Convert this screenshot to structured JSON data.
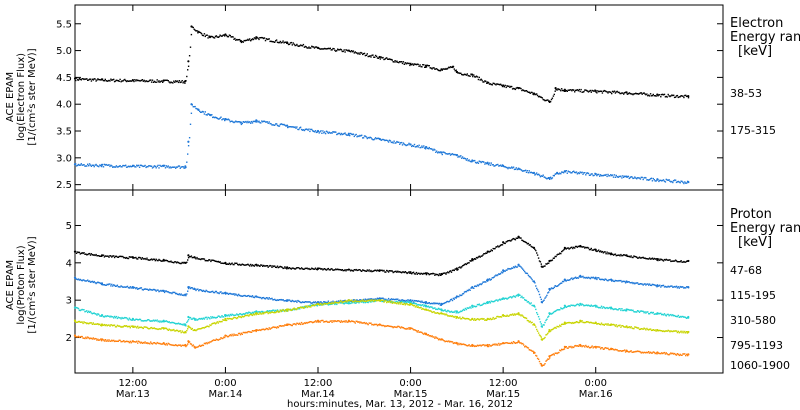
{
  "xaxis": {
    "title": "hours:minutes, Mar. 13, 2012 - Mar. 16, 2012",
    "range_hours": [
      4.5,
      88.5
    ],
    "ticks": [
      {
        "t": 12,
        "time": "12:00",
        "date": "Mar.13"
      },
      {
        "t": 24,
        "time": "0:00",
        "date": "Mar.14"
      },
      {
        "t": 36,
        "time": "12:00",
        "date": "Mar.14"
      },
      {
        "t": 48,
        "time": "0:00",
        "date": "Mar.15"
      },
      {
        "t": 60,
        "time": "12:00",
        "date": "Mar.15"
      },
      {
        "t": 72,
        "time": "0:00",
        "date": "Mar.16"
      }
    ]
  },
  "chart_data": [
    {
      "type": "scatter",
      "ylabel": [
        "ACE EPAM",
        "log(Electron Flux)",
        "[1/(cm²s ster MeV)]"
      ],
      "ylim": [
        2.4,
        5.85
      ],
      "yticks": [
        "2.5",
        "3.0",
        "3.5",
        "4.0",
        "4.5",
        "5.0",
        "5.5"
      ],
      "ytick_values": [
        2.5,
        3.0,
        3.5,
        4.0,
        4.5,
        5.0,
        5.5
      ],
      "legend_title": [
        "Electron",
        "Energy ran",
        "[keV]"
      ],
      "series": [
        {
          "name": "38-53",
          "color": "#000000",
          "points": [
            [
              4.5,
              4.48
            ],
            [
              8,
              4.46
            ],
            [
              12,
              4.45
            ],
            [
              16,
              4.44
            ],
            [
              18.8,
              4.43
            ],
            [
              19.2,
              4.8
            ],
            [
              19.6,
              5.45
            ],
            [
              20.5,
              5.35
            ],
            [
              22,
              5.25
            ],
            [
              24,
              5.3
            ],
            [
              26,
              5.18
            ],
            [
              28,
              5.25
            ],
            [
              32,
              5.15
            ],
            [
              36,
              5.05
            ],
            [
              40,
              5.0
            ],
            [
              44,
              4.88
            ],
            [
              48,
              4.75
            ],
            [
              50,
              4.72
            ],
            [
              52,
              4.65
            ],
            [
              53.5,
              4.7
            ],
            [
              54,
              4.6
            ],
            [
              56,
              4.55
            ],
            [
              58,
              4.4
            ],
            [
              60,
              4.35
            ],
            [
              62,
              4.3
            ],
            [
              64,
              4.2
            ],
            [
              66,
              4.05
            ],
            [
              66.8,
              4.3
            ],
            [
              68,
              4.27
            ],
            [
              72,
              4.25
            ],
            [
              76,
              4.22
            ],
            [
              80,
              4.18
            ],
            [
              84,
              4.15
            ]
          ]
        },
        {
          "name": "175-315",
          "color": "#1f78d8",
          "points": [
            [
              4.5,
              2.88
            ],
            [
              8,
              2.87
            ],
            [
              12,
              2.85
            ],
            [
              16,
              2.85
            ],
            [
              18.8,
              2.84
            ],
            [
              19.2,
              3.3
            ],
            [
              19.6,
              4.0
            ],
            [
              20.5,
              3.9
            ],
            [
              22,
              3.8
            ],
            [
              24,
              3.72
            ],
            [
              26,
              3.66
            ],
            [
              28,
              3.7
            ],
            [
              32,
              3.6
            ],
            [
              36,
              3.5
            ],
            [
              40,
              3.45
            ],
            [
              44,
              3.35
            ],
            [
              48,
              3.25
            ],
            [
              50,
              3.2
            ],
            [
              52,
              3.1
            ],
            [
              54,
              3.05
            ],
            [
              56,
              2.95
            ],
            [
              58,
              2.9
            ],
            [
              60,
              2.85
            ],
            [
              62,
              2.8
            ],
            [
              64,
              2.72
            ],
            [
              66,
              2.62
            ],
            [
              67,
              2.72
            ],
            [
              68,
              2.75
            ],
            [
              72,
              2.7
            ],
            [
              76,
              2.65
            ],
            [
              80,
              2.6
            ],
            [
              84,
              2.55
            ]
          ]
        }
      ]
    },
    {
      "type": "scatter",
      "ylabel": [
        "ACE EPAM",
        "log(Proton Flux)",
        "[1/(cm²s ster MeV)]"
      ],
      "ylim": [
        1.05,
        5.95
      ],
      "yticks": [
        "2",
        "3",
        "4",
        "5"
      ],
      "ytick_values": [
        2,
        3,
        4,
        5
      ],
      "legend_title": [
        "Proton",
        "Energy ran",
        "[keV]"
      ],
      "series": [
        {
          "name": "47-68",
          "color": "#000000",
          "points": [
            [
              4.5,
              4.3
            ],
            [
              8,
              4.2
            ],
            [
              12,
              4.15
            ],
            [
              16,
              4.08
            ],
            [
              18.8,
              4.0
            ],
            [
              19.2,
              4.2
            ],
            [
              20,
              4.15
            ],
            [
              24,
              4.0
            ],
            [
              28,
              3.95
            ],
            [
              32,
              3.88
            ],
            [
              36,
              3.85
            ],
            [
              40,
              3.82
            ],
            [
              44,
              3.8
            ],
            [
              48,
              3.75
            ],
            [
              50,
              3.72
            ],
            [
              52,
              3.7
            ],
            [
              54,
              3.85
            ],
            [
              56,
              4.1
            ],
            [
              58,
              4.3
            ],
            [
              60,
              4.55
            ],
            [
              62,
              4.7
            ],
            [
              64,
              4.4
            ],
            [
              65,
              3.9
            ],
            [
              66,
              4.05
            ],
            [
              68,
              4.4
            ],
            [
              70,
              4.45
            ],
            [
              72,
              4.35
            ],
            [
              74,
              4.25
            ],
            [
              76,
              4.2
            ],
            [
              80,
              4.1
            ],
            [
              84,
              4.05
            ]
          ]
        },
        {
          "name": "115-195",
          "color": "#1f78d8",
          "points": [
            [
              4.5,
              3.6
            ],
            [
              8,
              3.45
            ],
            [
              12,
              3.35
            ],
            [
              16,
              3.25
            ],
            [
              18.8,
              3.15
            ],
            [
              19.2,
              3.35
            ],
            [
              20,
              3.3
            ],
            [
              24,
              3.2
            ],
            [
              28,
              3.1
            ],
            [
              32,
              3.0
            ],
            [
              36,
              2.95
            ],
            [
              40,
              3.0
            ],
            [
              44,
              3.05
            ],
            [
              48,
              3.0
            ],
            [
              50,
              2.95
            ],
            [
              52,
              2.9
            ],
            [
              54,
              3.1
            ],
            [
              56,
              3.35
            ],
            [
              58,
              3.55
            ],
            [
              60,
              3.8
            ],
            [
              62,
              3.95
            ],
            [
              64,
              3.5
            ],
            [
              65,
              2.95
            ],
            [
              66,
              3.3
            ],
            [
              68,
              3.55
            ],
            [
              70,
              3.65
            ],
            [
              72,
              3.6
            ],
            [
              74,
              3.55
            ],
            [
              76,
              3.5
            ],
            [
              80,
              3.4
            ],
            [
              84,
              3.35
            ]
          ]
        },
        {
          "name": "310-580",
          "color": "#22d3d3",
          "points": [
            [
              4.5,
              2.8
            ],
            [
              8,
              2.6
            ],
            [
              12,
              2.5
            ],
            [
              16,
              2.45
            ],
            [
              18.8,
              2.35
            ],
            [
              19.2,
              2.55
            ],
            [
              20,
              2.5
            ],
            [
              24,
              2.6
            ],
            [
              28,
              2.7
            ],
            [
              32,
              2.75
            ],
            [
              36,
              2.9
            ],
            [
              40,
              2.95
            ],
            [
              44,
              3.0
            ],
            [
              48,
              2.95
            ],
            [
              50,
              2.85
            ],
            [
              52,
              2.75
            ],
            [
              54,
              2.7
            ],
            [
              56,
              2.85
            ],
            [
              58,
              2.95
            ],
            [
              60,
              3.05
            ],
            [
              62,
              3.15
            ],
            [
              64,
              2.85
            ],
            [
              65,
              2.3
            ],
            [
              66,
              2.65
            ],
            [
              68,
              2.85
            ],
            [
              70,
              2.9
            ],
            [
              72,
              2.85
            ],
            [
              74,
              2.8
            ],
            [
              76,
              2.75
            ],
            [
              80,
              2.65
            ],
            [
              84,
              2.55
            ]
          ]
        },
        {
          "name": "795-1193",
          "color": "#c8d400",
          "points": [
            [
              4.5,
              2.45
            ],
            [
              8,
              2.35
            ],
            [
              12,
              2.3
            ],
            [
              16,
              2.25
            ],
            [
              18.8,
              2.15
            ],
            [
              19.2,
              2.3
            ],
            [
              20,
              2.2
            ],
            [
              24,
              2.5
            ],
            [
              28,
              2.65
            ],
            [
              32,
              2.75
            ],
            [
              36,
              2.9
            ],
            [
              40,
              3.0
            ],
            [
              44,
              3.0
            ],
            [
              48,
              2.9
            ],
            [
              50,
              2.75
            ],
            [
              52,
              2.65
            ],
            [
              54,
              2.55
            ],
            [
              56,
              2.5
            ],
            [
              58,
              2.5
            ],
            [
              60,
              2.6
            ],
            [
              62,
              2.65
            ],
            [
              64,
              2.35
            ],
            [
              65,
              1.95
            ],
            [
              66,
              2.2
            ],
            [
              68,
              2.4
            ],
            [
              70,
              2.45
            ],
            [
              72,
              2.4
            ],
            [
              74,
              2.35
            ],
            [
              76,
              2.3
            ],
            [
              80,
              2.2
            ],
            [
              84,
              2.15
            ]
          ]
        },
        {
          "name": "1060-1900",
          "color": "#ff7f0e",
          "points": [
            [
              4.5,
              2.05
            ],
            [
              8,
              1.95
            ],
            [
              12,
              1.9
            ],
            [
              16,
              1.85
            ],
            [
              18.8,
              1.8
            ],
            [
              19.2,
              1.9
            ],
            [
              20,
              1.75
            ],
            [
              24,
              2.05
            ],
            [
              28,
              2.2
            ],
            [
              32,
              2.35
            ],
            [
              36,
              2.45
            ],
            [
              40,
              2.45
            ],
            [
              44,
              2.35
            ],
            [
              48,
              2.25
            ],
            [
              50,
              2.1
            ],
            [
              52,
              1.95
            ],
            [
              54,
              1.85
            ],
            [
              56,
              1.8
            ],
            [
              58,
              1.8
            ],
            [
              60,
              1.85
            ],
            [
              62,
              1.9
            ],
            [
              64,
              1.6
            ],
            [
              65,
              1.25
            ],
            [
              66,
              1.5
            ],
            [
              68,
              1.75
            ],
            [
              70,
              1.8
            ],
            [
              72,
              1.75
            ],
            [
              74,
              1.7
            ],
            [
              76,
              1.65
            ],
            [
              80,
              1.6
            ],
            [
              84,
              1.55
            ]
          ]
        }
      ]
    }
  ]
}
